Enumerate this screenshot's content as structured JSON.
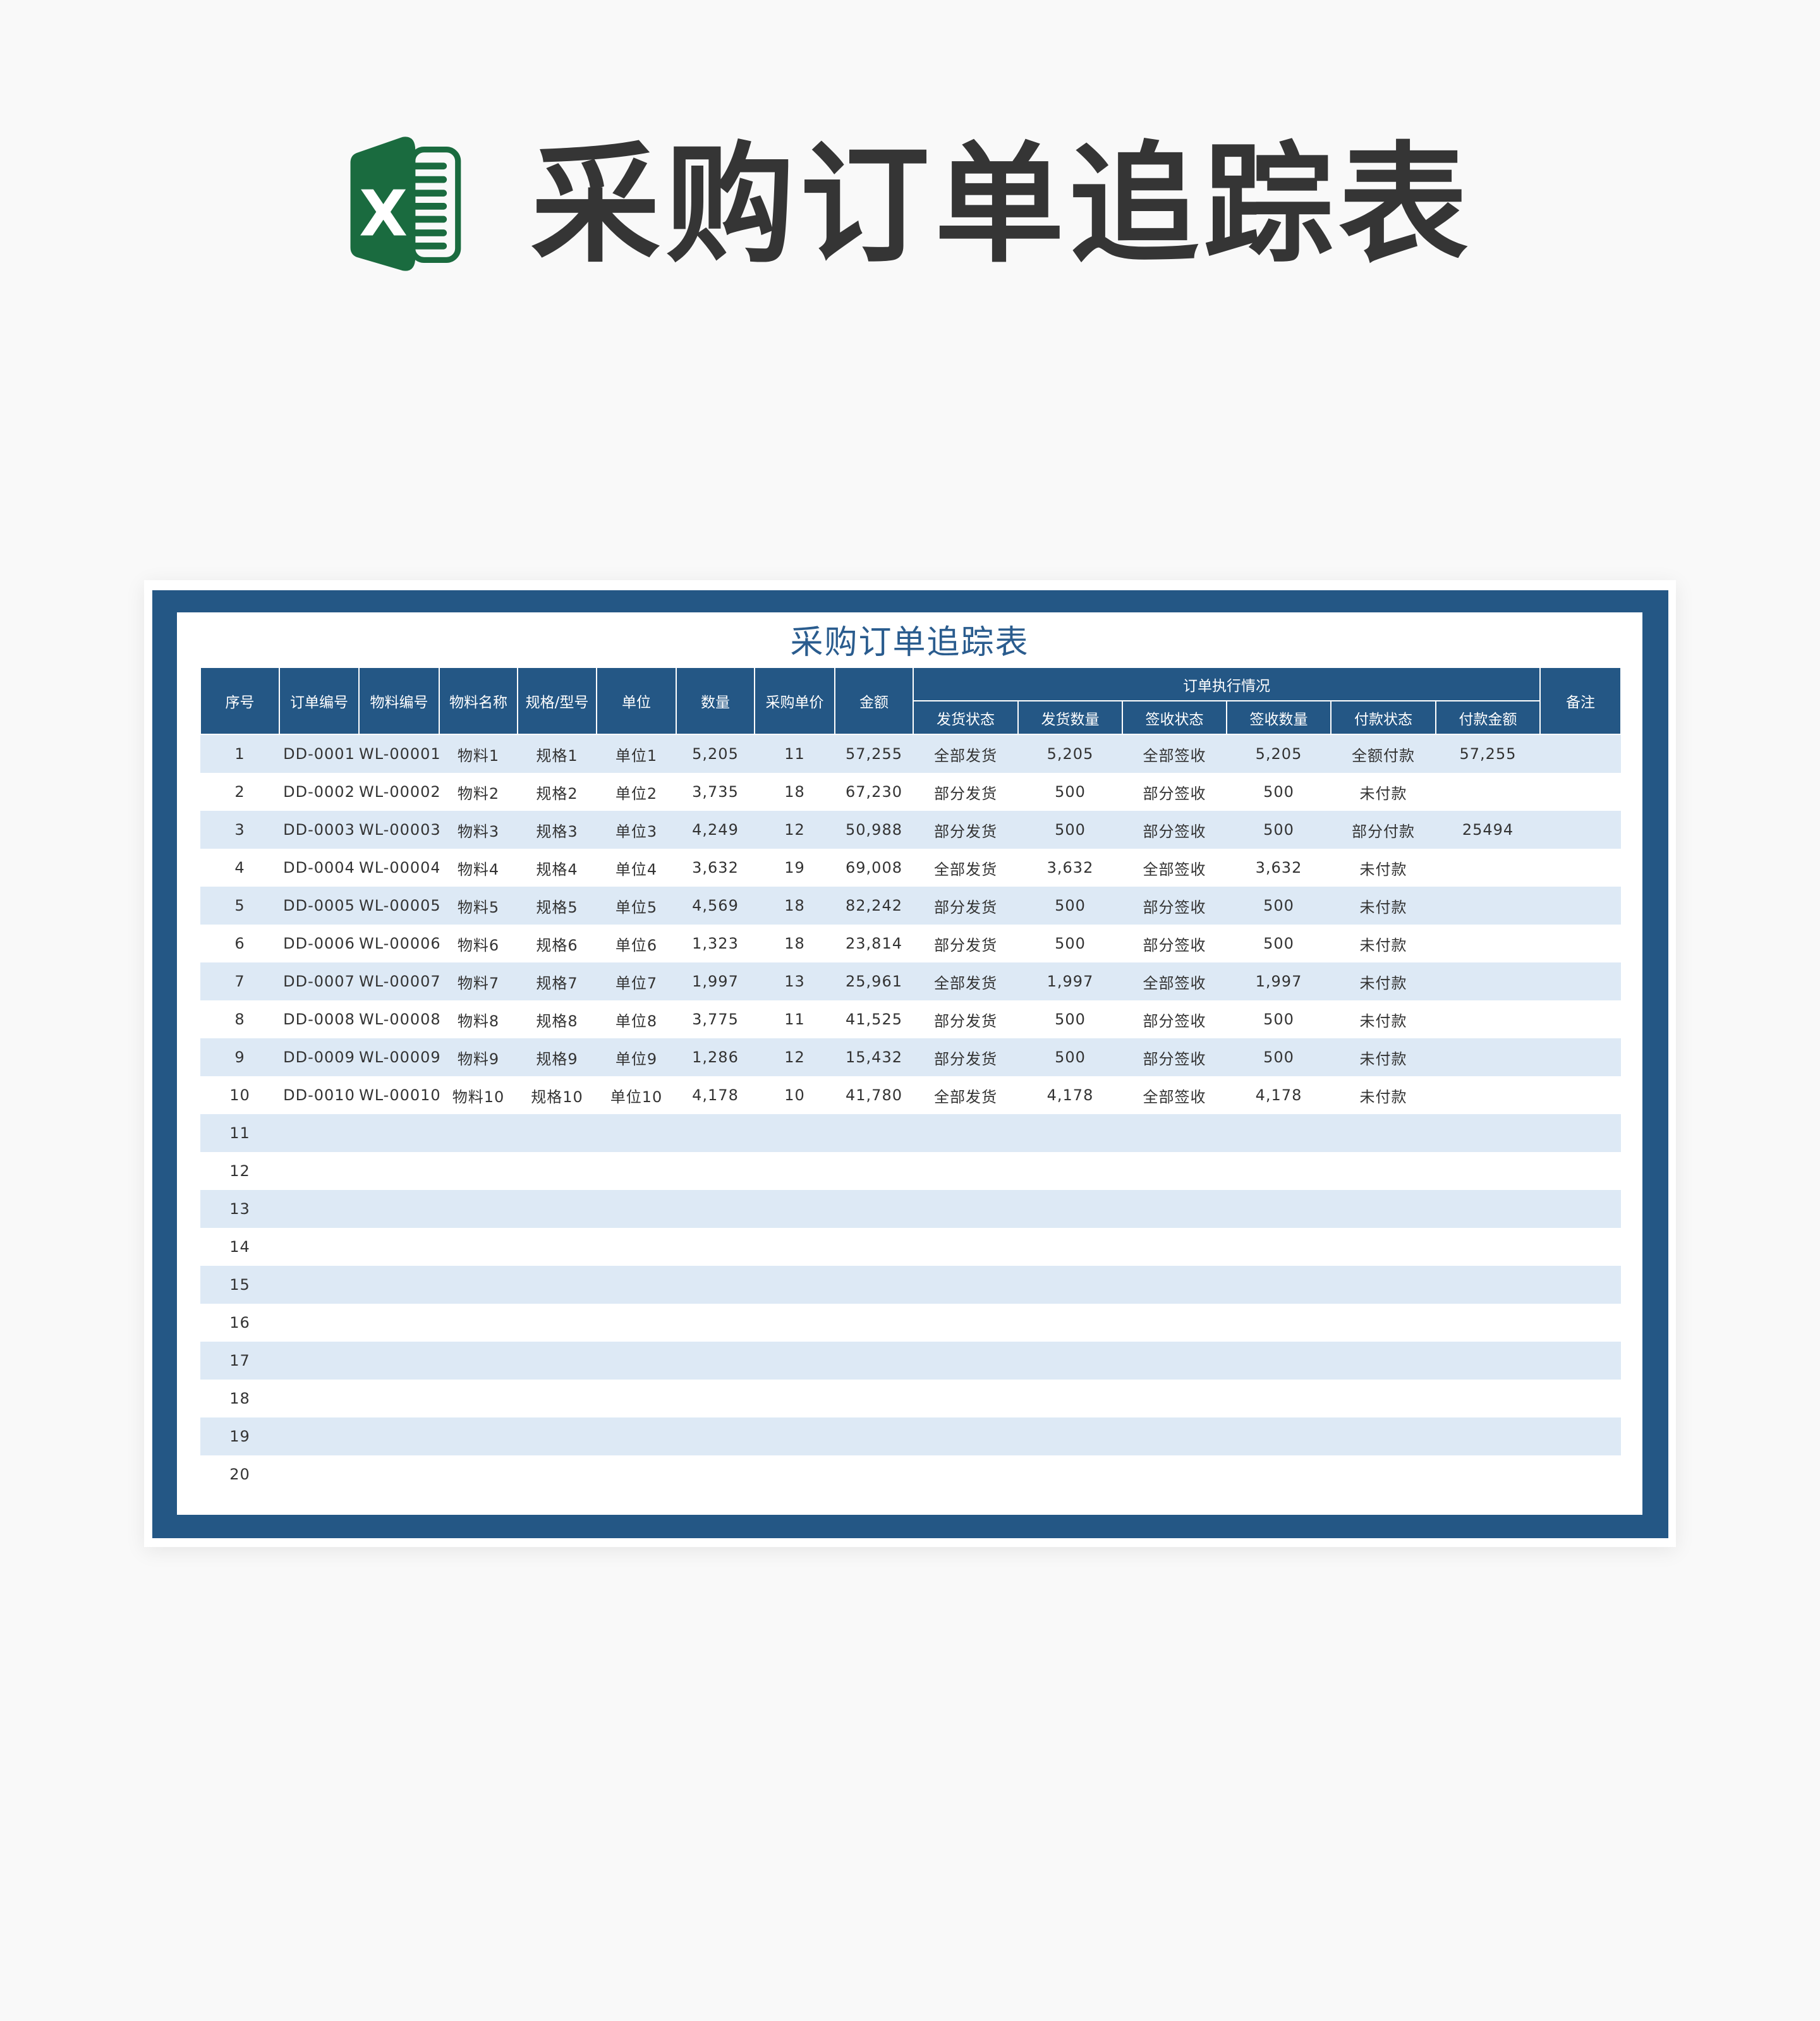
{
  "header": {
    "title": "采购订单追踪表",
    "logo_letter": "X"
  },
  "sheet": {
    "title": "采购订单追踪表",
    "columns": [
      "序号",
      "订单编号",
      "物料编号",
      "物料名称",
      "规格/型号",
      "单位",
      "数量",
      "采购单价",
      "金额"
    ],
    "group_label": "订单执行情况",
    "sub_columns": [
      "发货状态",
      "发货数量",
      "签收状态",
      "签收数量",
      "付款状态",
      "付款金额"
    ],
    "remark_label": "备注",
    "rows": [
      [
        "1",
        "DD-0001",
        "WL-00001",
        "物料1",
        "规格1",
        "单位1",
        "5,205",
        "11",
        "57,255",
        "全部发货",
        "5,205",
        "全部签收",
        "5,205",
        "全额付款",
        "57,255",
        ""
      ],
      [
        "2",
        "DD-0002",
        "WL-00002",
        "物料2",
        "规格2",
        "单位2",
        "3,735",
        "18",
        "67,230",
        "部分发货",
        "500",
        "部分签收",
        "500",
        "未付款",
        "",
        ""
      ],
      [
        "3",
        "DD-0003",
        "WL-00003",
        "物料3",
        "规格3",
        "单位3",
        "4,249",
        "12",
        "50,988",
        "部分发货",
        "500",
        "部分签收",
        "500",
        "部分付款",
        "25494",
        ""
      ],
      [
        "4",
        "DD-0004",
        "WL-00004",
        "物料4",
        "规格4",
        "单位4",
        "3,632",
        "19",
        "69,008",
        "全部发货",
        "3,632",
        "全部签收",
        "3,632",
        "未付款",
        "",
        ""
      ],
      [
        "5",
        "DD-0005",
        "WL-00005",
        "物料5",
        "规格5",
        "单位5",
        "4,569",
        "18",
        "82,242",
        "部分发货",
        "500",
        "部分签收",
        "500",
        "未付款",
        "",
        ""
      ],
      [
        "6",
        "DD-0006",
        "WL-00006",
        "物料6",
        "规格6",
        "单位6",
        "1,323",
        "18",
        "23,814",
        "部分发货",
        "500",
        "部分签收",
        "500",
        "未付款",
        "",
        ""
      ],
      [
        "7",
        "DD-0007",
        "WL-00007",
        "物料7",
        "规格7",
        "单位7",
        "1,997",
        "13",
        "25,961",
        "全部发货",
        "1,997",
        "全部签收",
        "1,997",
        "未付款",
        "",
        ""
      ],
      [
        "8",
        "DD-0008",
        "WL-00008",
        "物料8",
        "规格8",
        "单位8",
        "3,775",
        "11",
        "41,525",
        "部分发货",
        "500",
        "部分签收",
        "500",
        "未付款",
        "",
        ""
      ],
      [
        "9",
        "DD-0009",
        "WL-00009",
        "物料9",
        "规格9",
        "单位9",
        "1,286",
        "12",
        "15,432",
        "部分发货",
        "500",
        "部分签收",
        "500",
        "未付款",
        "",
        ""
      ],
      [
        "10",
        "DD-0010",
        "WL-00010",
        "物料10",
        "规格10",
        "单位10",
        "4,178",
        "10",
        "41,780",
        "全部发货",
        "4,178",
        "全部签收",
        "4,178",
        "未付款",
        "",
        ""
      ],
      [
        "11"
      ],
      [
        "12"
      ],
      [
        "13"
      ],
      [
        "14"
      ],
      [
        "15"
      ],
      [
        "16"
      ],
      [
        "17"
      ],
      [
        "18"
      ],
      [
        "19"
      ],
      [
        "20"
      ]
    ]
  },
  "colors": {
    "header": "#245785",
    "stripe": "#dde9f5",
    "excel_green": "#1a6b3f",
    "title_text": "#353535"
  }
}
